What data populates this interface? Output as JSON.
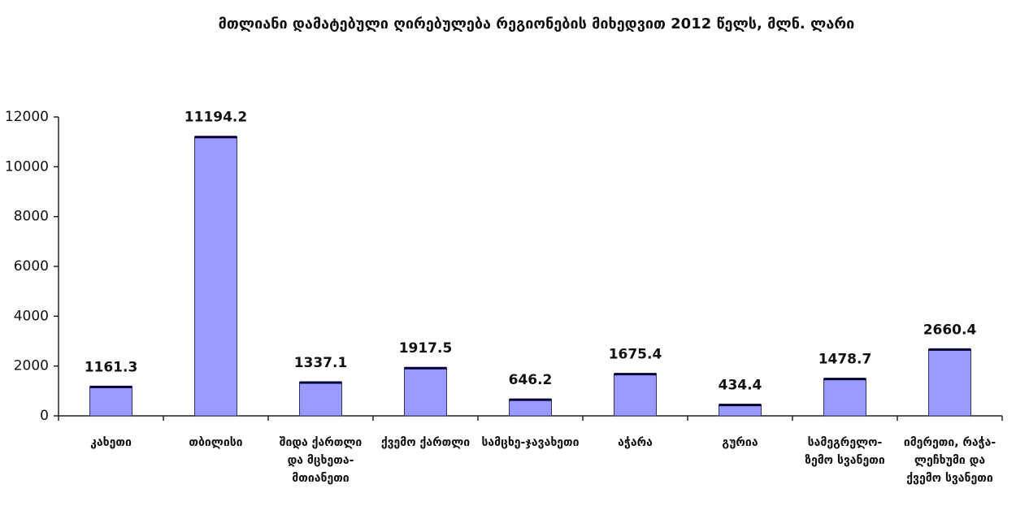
{
  "chart_data": {
    "type": "bar",
    "title": "მთლიანი დამატებული ღირებულება რეგიონების მიხედვით 2012 წელს, მლნ. ლარი",
    "categories": [
      "კახეთი",
      "თბილისი",
      "შიდა ქართლი და მცხეთა-მთიანეთი",
      "ქვემო ქართლი",
      "სამცხე-ჯავახეთი",
      "აჭარა",
      "გურია",
      "სამეგრელო-ზემო სვანეთი",
      "იმერეთი, რაჭა-ლეჩხუმი და ქვემო სვანეთი"
    ],
    "values": [
      1161.3,
      11194.2,
      1337.1,
      1917.5,
      646.2,
      1675.4,
      434.4,
      1478.7,
      2660.4
    ],
    "color": "#9999ff",
    "ylim": [
      0,
      12000
    ],
    "yticks": [
      0,
      2000,
      4000,
      6000,
      8000,
      10000,
      12000
    ],
    "grid": false
  }
}
